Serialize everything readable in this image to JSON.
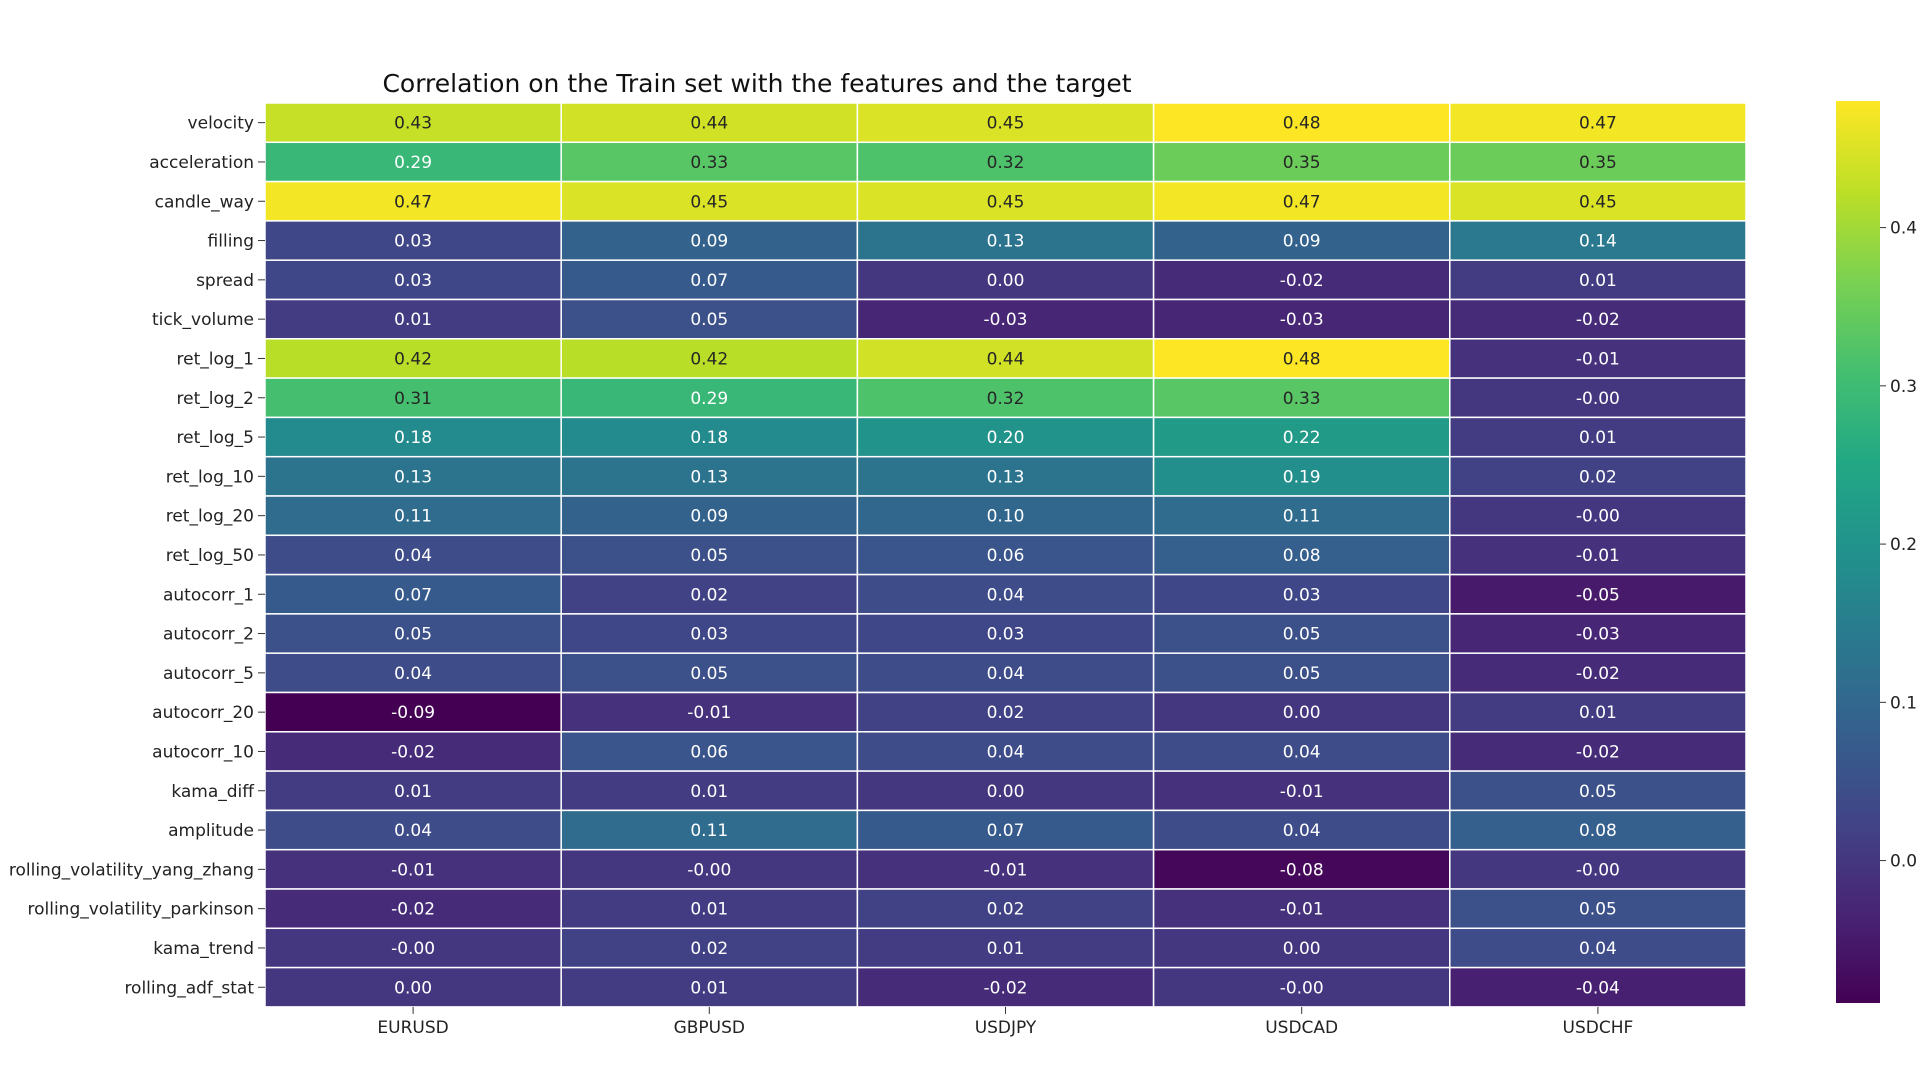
{
  "chart_data": {
    "type": "heatmap",
    "title": "Correlation on the Train set with the features and the target",
    "xlabel": "",
    "ylabel": "",
    "columns": [
      "EURUSD",
      "GBPUSD",
      "USDJPY",
      "USDCAD",
      "USDCHF"
    ],
    "rows": [
      "velocity",
      "acceleration",
      "candle_way",
      "filling",
      "spread",
      "tick_volume",
      "ret_log_1",
      "ret_log_2",
      "ret_log_5",
      "ret_log_10",
      "ret_log_20",
      "ret_log_50",
      "autocorr_1",
      "autocorr_2",
      "autocorr_5",
      "autocorr_20",
      "autocorr_10",
      "kama_diff",
      "amplitude",
      "rolling_volatility_yang_zhang",
      "rolling_volatility_parkinson",
      "kama_trend",
      "rolling_adf_stat"
    ],
    "values": [
      [
        0.43,
        0.44,
        0.45,
        0.48,
        0.47
      ],
      [
        0.29,
        0.33,
        0.32,
        0.35,
        0.35
      ],
      [
        0.47,
        0.45,
        0.45,
        0.47,
        0.45
      ],
      [
        0.03,
        0.09,
        0.13,
        0.09,
        0.14
      ],
      [
        0.03,
        0.07,
        0.0,
        -0.02,
        0.01
      ],
      [
        0.01,
        0.05,
        -0.03,
        -0.03,
        -0.02
      ],
      [
        0.42,
        0.42,
        0.44,
        0.48,
        -0.01
      ],
      [
        0.31,
        0.29,
        0.32,
        0.33,
        -0.0
      ],
      [
        0.18,
        0.18,
        0.2,
        0.22,
        0.01
      ],
      [
        0.13,
        0.13,
        0.13,
        0.19,
        0.02
      ],
      [
        0.11,
        0.09,
        0.1,
        0.11,
        -0.0
      ],
      [
        0.04,
        0.05,
        0.06,
        0.08,
        -0.01
      ],
      [
        0.07,
        0.02,
        0.04,
        0.03,
        -0.05
      ],
      [
        0.05,
        0.03,
        0.03,
        0.05,
        -0.03
      ],
      [
        0.04,
        0.05,
        0.04,
        0.05,
        -0.02
      ],
      [
        -0.09,
        -0.01,
        0.02,
        0.0,
        0.01
      ],
      [
        -0.02,
        0.06,
        0.04,
        0.04,
        -0.02
      ],
      [
        0.01,
        0.01,
        0.0,
        -0.01,
        0.05
      ],
      [
        0.04,
        0.11,
        0.07,
        0.04,
        0.08
      ],
      [
        -0.01,
        -0.0,
        -0.01,
        -0.08,
        -0.0
      ],
      [
        -0.02,
        0.01,
        0.02,
        -0.01,
        0.05
      ],
      [
        -0.0,
        0.02,
        0.01,
        0.0,
        0.04
      ],
      [
        0.0,
        0.01,
        -0.02,
        -0.0,
        -0.04
      ]
    ],
    "labels": [
      [
        "0.43",
        "0.44",
        "0.45",
        "0.48",
        "0.47"
      ],
      [
        "0.29",
        "0.33",
        "0.32",
        "0.35",
        "0.35"
      ],
      [
        "0.47",
        "0.45",
        "0.45",
        "0.47",
        "0.45"
      ],
      [
        "0.03",
        "0.09",
        "0.13",
        "0.09",
        "0.14"
      ],
      [
        "0.03",
        "0.07",
        "0.00",
        "-0.02",
        "0.01"
      ],
      [
        "0.01",
        "0.05",
        "-0.03",
        "-0.03",
        "-0.02"
      ],
      [
        "0.42",
        "0.42",
        "0.44",
        "0.48",
        "-0.01"
      ],
      [
        "0.31",
        "0.29",
        "0.32",
        "0.33",
        "-0.00"
      ],
      [
        "0.18",
        "0.18",
        "0.20",
        "0.22",
        "0.01"
      ],
      [
        "0.13",
        "0.13",
        "0.13",
        "0.19",
        "0.02"
      ],
      [
        "0.11",
        "0.09",
        "0.10",
        "0.11",
        "-0.00"
      ],
      [
        "0.04",
        "0.05",
        "0.06",
        "0.08",
        "-0.01"
      ],
      [
        "0.07",
        "0.02",
        "0.04",
        "0.03",
        "-0.05"
      ],
      [
        "0.05",
        "0.03",
        "0.03",
        "0.05",
        "-0.03"
      ],
      [
        "0.04",
        "0.05",
        "0.04",
        "0.05",
        "-0.02"
      ],
      [
        "-0.09",
        "-0.01",
        "0.02",
        "0.00",
        "0.01"
      ],
      [
        "-0.02",
        "0.06",
        "0.04",
        "0.04",
        "-0.02"
      ],
      [
        "0.01",
        "0.01",
        "0.00",
        "-0.01",
        "0.05"
      ],
      [
        "0.04",
        "0.11",
        "0.07",
        "0.04",
        "0.08"
      ],
      [
        "-0.01",
        "-0.00",
        "-0.01",
        "-0.08",
        "-0.00"
      ],
      [
        "-0.02",
        "0.01",
        "0.02",
        "-0.01",
        "0.05"
      ],
      [
        "-0.00",
        "0.02",
        "0.01",
        "0.00",
        "0.04"
      ],
      [
        "0.00",
        "0.01",
        "-0.02",
        "-0.00",
        "-0.04"
      ]
    ],
    "colormap": "viridis",
    "vmin": -0.09,
    "vmax": 0.48,
    "colorbar": {
      "ticks": [
        0.0,
        0.1,
        0.2,
        0.3,
        0.4
      ],
      "tick_labels": [
        "0.0",
        "0.1",
        "0.2",
        "0.3",
        "0.4"
      ]
    },
    "grid": true,
    "legend": "colorbar-right"
  }
}
